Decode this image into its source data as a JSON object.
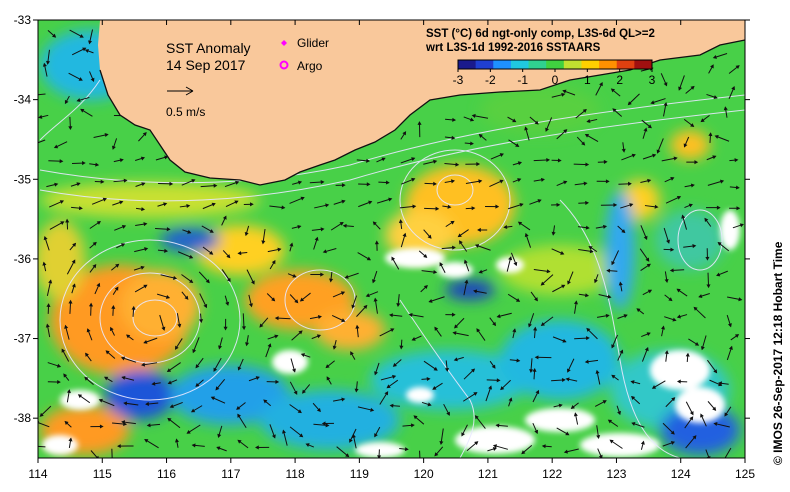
{
  "map": {
    "title_line1": "SST Anomaly",
    "title_line2": "14 Sep 2017",
    "scale_label": "0.5 m/s",
    "legend": {
      "glider_label": "Glider",
      "argo_label": "Argo",
      "glider_color": "#ff00ff",
      "argo_color": "#ff00ff"
    },
    "colorbar": {
      "title_line1": "SST (°C) 6d ngt-only comp, L3S-6d QL>=2",
      "title_line2": "wrt L3S-1d 1992-2016 SSTAARS",
      "ticks": [
        "-3",
        "-2",
        "-1",
        "0",
        "1",
        "2",
        "3"
      ],
      "min": -3,
      "max": 3,
      "colors": [
        "#1a1a8c",
        "#1f3fd0",
        "#1e90ff",
        "#20c8e0",
        "#30d090",
        "#40d040",
        "#c0e030",
        "#ffd000",
        "#ff9000",
        "#e04010",
        "#a01010"
      ]
    },
    "credit": "© IMOS 26-Sep-2017 12:18 Hobart Time",
    "x_ticks": [
      "114",
      "115",
      "116",
      "117",
      "118",
      "119",
      "120",
      "121",
      "122",
      "123",
      "124",
      "125"
    ],
    "y_ticks": [
      "-33",
      "-34",
      "-35",
      "-36",
      "-37",
      "-38"
    ],
    "lon_range": [
      114,
      125
    ],
    "lat_range": [
      -38.5,
      -33
    ],
    "land_color": "#f9c89b",
    "ocean_color": "#48d048"
  }
}
